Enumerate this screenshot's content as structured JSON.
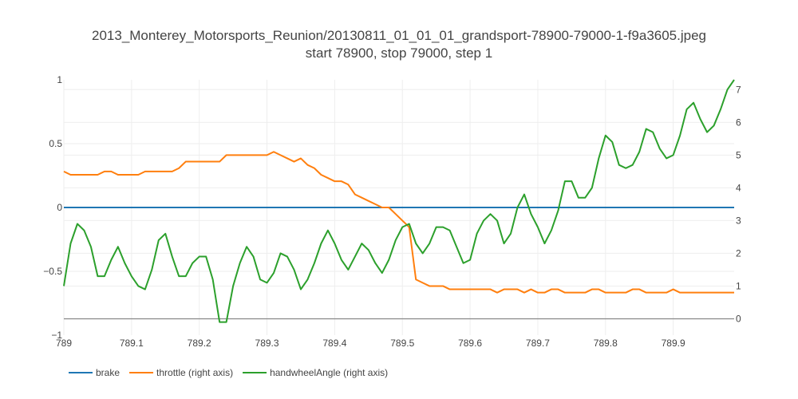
{
  "chart_data": {
    "type": "line",
    "title": "2013_Monterey_Motorsports_Reunion/20130811_01_01_01_grandsport-78900-79000-1-f9a3605.jpeg",
    "subtitle": "start 78900, stop 79000, step 1",
    "x_ticks": [
      "789",
      "789.1",
      "789.2",
      "789.3",
      "789.4",
      "789.5",
      "789.6",
      "789.7",
      "789.8",
      "789.9"
    ],
    "x_tick_values": [
      789,
      789.1,
      789.2,
      789.3,
      789.4,
      789.5,
      789.6,
      789.7,
      789.8,
      789.9
    ],
    "xlim": [
      789,
      789.99
    ],
    "y_left_ticks": [
      "1",
      "0.5",
      "0",
      "−0.5",
      "−1"
    ],
    "y_left_tick_values": [
      1,
      0.5,
      0,
      -0.5,
      -1
    ],
    "ylim_left": [
      -1,
      1
    ],
    "y_right_ticks": [
      "7",
      "6",
      "5",
      "4",
      "3",
      "2",
      "1",
      "0"
    ],
    "y_right_tick_values": [
      7,
      6,
      5,
      4,
      3,
      2,
      1,
      0
    ],
    "ylim_right": [
      -0.5,
      7.3
    ],
    "grid": true,
    "legend_position": "bottom-left",
    "x": [
      789.0,
      789.01,
      789.02,
      789.03,
      789.04,
      789.05,
      789.06,
      789.07,
      789.08,
      789.09,
      789.1,
      789.11,
      789.12,
      789.13,
      789.14,
      789.15,
      789.16,
      789.17,
      789.18,
      789.19,
      789.2,
      789.21,
      789.22,
      789.23,
      789.24,
      789.25,
      789.26,
      789.27,
      789.28,
      789.29,
      789.3,
      789.31,
      789.32,
      789.33,
      789.34,
      789.35,
      789.36,
      789.37,
      789.38,
      789.39,
      789.4,
      789.41,
      789.42,
      789.43,
      789.44,
      789.45,
      789.46,
      789.47,
      789.48,
      789.49,
      789.5,
      789.51,
      789.52,
      789.53,
      789.54,
      789.55,
      789.56,
      789.57,
      789.58,
      789.59,
      789.6,
      789.61,
      789.62,
      789.63,
      789.64,
      789.65,
      789.66,
      789.67,
      789.68,
      789.69,
      789.7,
      789.71,
      789.72,
      789.73,
      789.74,
      789.75,
      789.76,
      789.77,
      789.78,
      789.79,
      789.8,
      789.81,
      789.82,
      789.83,
      789.84,
      789.85,
      789.86,
      789.87,
      789.88,
      789.89,
      789.9,
      789.91,
      789.92,
      789.93,
      789.94,
      789.95,
      789.96,
      789.97,
      789.98,
      789.99
    ],
    "series": [
      {
        "name": "brake",
        "axis": "left",
        "color": "#1f77b4",
        "values": [
          0,
          0,
          0,
          0,
          0,
          0,
          0,
          0,
          0,
          0,
          0,
          0,
          0,
          0,
          0,
          0,
          0,
          0,
          0,
          0,
          0,
          0,
          0,
          0,
          0,
          0,
          0,
          0,
          0,
          0,
          0,
          0,
          0,
          0,
          0,
          0,
          0,
          0,
          0,
          0,
          0,
          0,
          0,
          0,
          0,
          0,
          0,
          0,
          0,
          0,
          0,
          0,
          0,
          0,
          0,
          0,
          0,
          0,
          0,
          0,
          0,
          0,
          0,
          0,
          0,
          0,
          0,
          0,
          0,
          0,
          0,
          0,
          0,
          0,
          0,
          0,
          0,
          0,
          0,
          0,
          0,
          0,
          0,
          0,
          0,
          0,
          0,
          0,
          0,
          0,
          0,
          0,
          0,
          0,
          0,
          0,
          0,
          0,
          0,
          0
        ]
      },
      {
        "name": "throttle (right axis)",
        "axis": "right",
        "color": "#ff7f0e",
        "values": [
          4.5,
          4.4,
          4.4,
          4.4,
          4.4,
          4.4,
          4.5,
          4.5,
          4.4,
          4.4,
          4.4,
          4.4,
          4.5,
          4.5,
          4.5,
          4.5,
          4.5,
          4.6,
          4.8,
          4.8,
          4.8,
          4.8,
          4.8,
          4.8,
          5.0,
          5.0,
          5.0,
          5.0,
          5.0,
          5.0,
          5.0,
          5.1,
          5.0,
          4.9,
          4.8,
          4.9,
          4.7,
          4.6,
          4.4,
          4.3,
          4.2,
          4.2,
          4.1,
          3.8,
          3.7,
          3.6,
          3.5,
          3.4,
          3.4,
          3.2,
          3.0,
          2.8,
          1.2,
          1.1,
          1.0,
          1.0,
          1.0,
          0.9,
          0.9,
          0.9,
          0.9,
          0.9,
          0.9,
          0.9,
          0.8,
          0.9,
          0.9,
          0.9,
          0.8,
          0.9,
          0.8,
          0.8,
          0.9,
          0.9,
          0.8,
          0.8,
          0.8,
          0.8,
          0.9,
          0.9,
          0.8,
          0.8,
          0.8,
          0.8,
          0.9,
          0.9,
          0.8,
          0.8,
          0.8,
          0.8,
          0.9,
          0.8,
          0.8,
          0.8,
          0.8,
          0.8,
          0.8,
          0.8,
          0.8,
          0.8
        ]
      },
      {
        "name": "handwheelAngle (right axis)",
        "axis": "right",
        "color": "#2ca02c",
        "values": [
          1.0,
          2.3,
          2.9,
          2.7,
          2.2,
          1.3,
          1.3,
          1.8,
          2.2,
          1.7,
          1.3,
          1.0,
          0.9,
          1.5,
          2.4,
          2.6,
          1.9,
          1.3,
          1.3,
          1.7,
          1.9,
          1.9,
          1.2,
          -0.1,
          -0.1,
          1.0,
          1.7,
          2.2,
          1.9,
          1.2,
          1.1,
          1.4,
          2.0,
          1.9,
          1.5,
          0.9,
          1.2,
          1.7,
          2.3,
          2.7,
          2.3,
          1.8,
          1.5,
          1.9,
          2.3,
          2.1,
          1.7,
          1.4,
          1.8,
          2.4,
          2.8,
          2.9,
          2.3,
          2.0,
          2.3,
          2.8,
          2.8,
          2.7,
          2.2,
          1.7,
          1.8,
          2.6,
          3.0,
          3.2,
          3.0,
          2.3,
          2.6,
          3.4,
          3.8,
          3.2,
          2.8,
          2.3,
          2.7,
          3.3,
          4.2,
          4.2,
          3.7,
          3.7,
          4.0,
          4.9,
          5.6,
          5.4,
          4.7,
          4.6,
          4.7,
          5.1,
          5.8,
          5.7,
          5.2,
          4.9,
          5.0,
          5.6,
          6.4,
          6.6,
          6.1,
          5.7,
          5.9,
          6.4,
          7.0,
          7.3
        ]
      }
    ]
  }
}
